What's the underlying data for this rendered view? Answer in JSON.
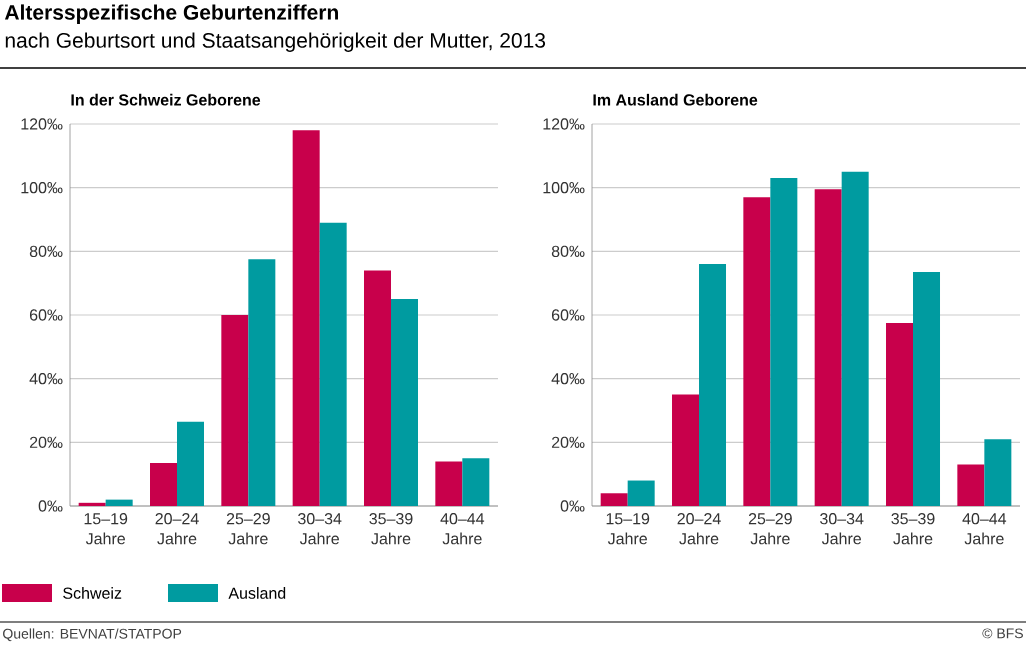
{
  "chart_data": [
    {
      "type": "other",
      "title": "Altersspezifische Geburtenziffern",
      "subtitle": "nach Geburtsort und Staatsangehörigkeit der Mutter, 2013",
      "annotations": [
        "Quellen: BEVNAT/STATPOP",
        "© BFS"
      ]
    },
    {
      "type": "bar",
      "title": "In der Schweiz Geborene",
      "categories": [
        "15–19 Jahre",
        "20–24 Jahre",
        "25–29 Jahre",
        "30–34 Jahre",
        "35–39 Jahre",
        "40–44 Jahre"
      ],
      "series": [
        {
          "name": "Schweiz",
          "color": "#c8004b",
          "values": [
            1,
            13.5,
            60,
            118,
            74,
            14
          ]
        },
        {
          "name": "Ausland",
          "color": "#009ba0",
          "values": [
            2,
            26.5,
            77.5,
            89,
            65,
            15
          ]
        }
      ],
      "ylim": [
        0,
        120
      ],
      "yticks": [
        {
          "value": 0,
          "label": "0‰"
        },
        {
          "value": 20,
          "label": "20‰"
        },
        {
          "value": 40,
          "label": "40‰"
        },
        {
          "value": 60,
          "label": "60‰"
        },
        {
          "value": 80,
          "label": "80‰"
        },
        {
          "value": 100,
          "label": "100‰"
        },
        {
          "value": 120,
          "label": "120‰"
        }
      ],
      "grid": "y",
      "legend": "bottom"
    },
    {
      "type": "bar",
      "title": "Im Ausland Geborene",
      "categories": [
        "15–19 Jahre",
        "20–24 Jahre",
        "25–29 Jahre",
        "30–34 Jahre",
        "35–39 Jahre",
        "40–44 Jahre"
      ],
      "series": [
        {
          "color": "#c8004b",
          "values": [
            4,
            35,
            97,
            99.5,
            57.5,
            13
          ]
        },
        {
          "color": "#009ba0",
          "values": [
            8,
            76,
            103,
            105,
            73.5,
            21
          ]
        }
      ],
      "ylim": [
        0,
        120
      ],
      "yticks": [
        {
          "value": 0,
          "label": "0‰"
        },
        {
          "value": 20,
          "label": "20‰"
        },
        {
          "value": 40,
          "label": "40‰"
        },
        {
          "value": 60,
          "label": "60‰"
        },
        {
          "value": 80,
          "label": "80‰"
        },
        {
          "value": 100,
          "label": "100‰"
        },
        {
          "value": 120,
          "label": "120‰"
        }
      ],
      "grid": "y"
    }
  ]
}
